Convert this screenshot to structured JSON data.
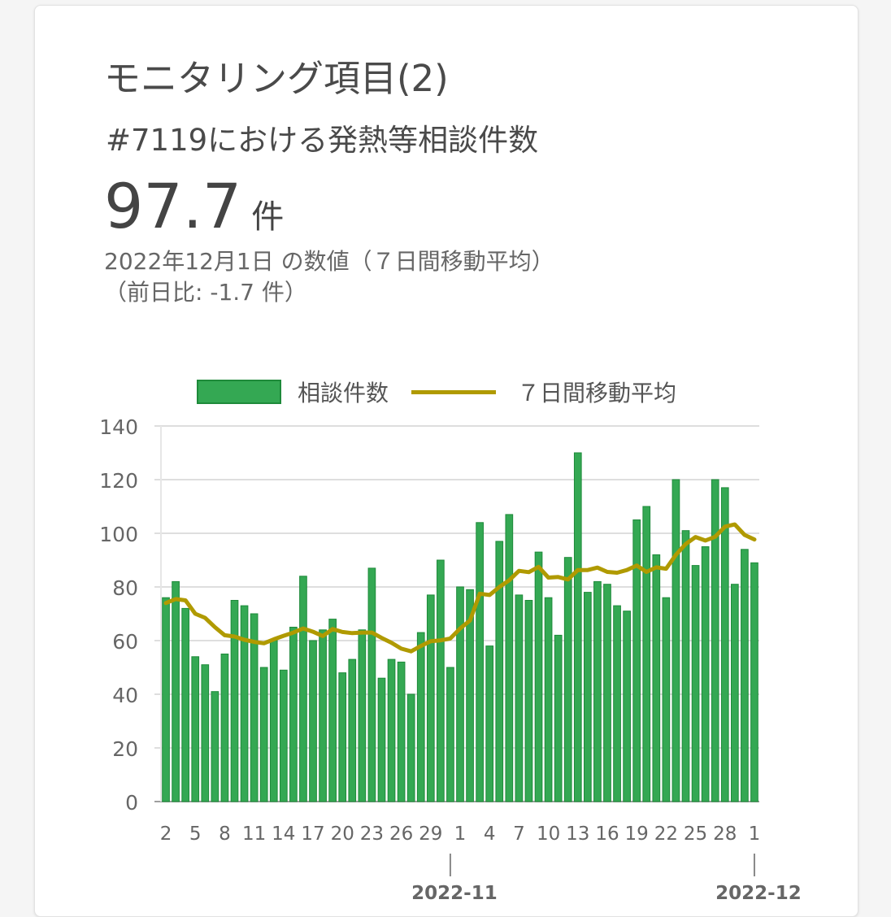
{
  "card": {
    "title": "モニタリング項目(2)",
    "subtitle": "#7119における発熱等相談件数",
    "value": "97.7",
    "unit": "件",
    "note_date": "2022年12月1日 の数値（７日間移動平均）",
    "note_change": "（前日比: -1.7 件）"
  },
  "colors": {
    "bar": "#34a853",
    "bar_border": "#1e8a3a",
    "line": "#b09a00"
  },
  "chart_data": {
    "type": "bar",
    "legend_placement": "top",
    "grid": true,
    "ylim": [
      0,
      140
    ],
    "yticks": [
      "0",
      "20",
      "40",
      "60",
      "80",
      "100",
      "120",
      "140"
    ],
    "xtick_labels": [
      "2",
      "5",
      "8",
      "11",
      "14",
      "17",
      "20",
      "23",
      "26",
      "29",
      "1",
      "4",
      "7",
      "10",
      "13",
      "16",
      "19",
      "22",
      "25",
      "28",
      "1"
    ],
    "month_labels": [
      "2022-11",
      "2022-12"
    ],
    "series": [
      {
        "name": "相談件数",
        "type": "bar",
        "values": [
          76,
          82,
          72,
          54,
          51,
          41,
          55,
          75,
          73,
          70,
          50,
          60,
          49,
          65,
          84,
          60,
          64,
          68,
          48,
          53,
          64,
          87,
          46,
          53,
          52,
          40,
          63,
          77,
          90,
          50,
          80,
          79,
          104,
          58,
          97,
          107,
          77,
          75,
          93,
          76,
          62,
          91,
          130,
          78,
          82,
          81,
          73,
          71,
          105,
          110,
          92,
          76,
          120,
          101,
          88,
          95,
          120,
          117,
          81,
          94,
          89
        ]
      },
      {
        "name": "７日間移動平均",
        "type": "line",
        "values": [
          74,
          75.5,
          75,
          70,
          68.5,
          65,
          62,
          61.5,
          60.3,
          59.5,
          59,
          60.5,
          61.8,
          63,
          64.5,
          63.3,
          61.7,
          64.3,
          63.2,
          62.8,
          63,
          63,
          61,
          59.2,
          57,
          56,
          58,
          59.8,
          60.1,
          60.8,
          64.5,
          67.5,
          77.5,
          77,
          80,
          82.5,
          86,
          85.5,
          87.5,
          83.5,
          83.7,
          82.8,
          86.3,
          86.3,
          87.2,
          85.6,
          85.3,
          86.3,
          88,
          85.6,
          87.3,
          86.8,
          92,
          96,
          98.6,
          97.3,
          98.7,
          102.5,
          103.3,
          99.4,
          97.7
        ]
      }
    ]
  }
}
